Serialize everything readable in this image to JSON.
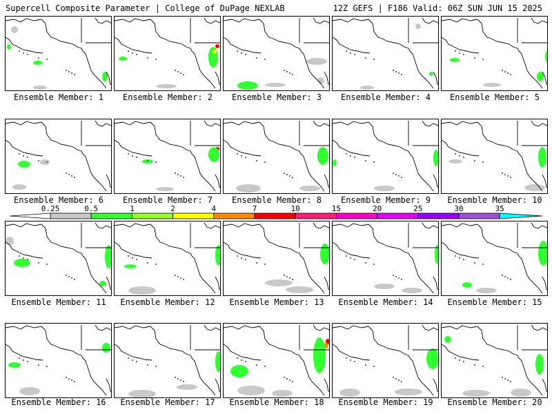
{
  "header": {
    "title_left": "Supercell Composite Parameter | College of DuPage NEXLAB",
    "title_right": "12Z GEFS | F186 Valid: 06Z SUN JUN 15 2025"
  },
  "panels": [
    {
      "label": "Ensemble Member: 1"
    },
    {
      "label": "Ensemble Member: 2"
    },
    {
      "label": "Ensemble Member: 3"
    },
    {
      "label": "Ensemble Member: 4"
    },
    {
      "label": "Ensemble Member: 5"
    },
    {
      "label": "Ensemble Member: 6"
    },
    {
      "label": "Ensemble Member: 7"
    },
    {
      "label": "Ensemble Member: 8"
    },
    {
      "label": "Ensemble Member: 9"
    },
    {
      "label": "Ensemble Member: 10"
    },
    {
      "label": "Ensemble Member: 11"
    },
    {
      "label": "Ensemble Member: 12"
    },
    {
      "label": "Ensemble Member: 13"
    },
    {
      "label": "Ensemble Member: 14"
    },
    {
      "label": "Ensemble Member: 15"
    },
    {
      "label": "Ensemble Member: 16"
    },
    {
      "label": "Ensemble Member: 17"
    },
    {
      "label": "Ensemble Member: 18"
    },
    {
      "label": "Ensemble Member: 19"
    },
    {
      "label": "Ensemble Member: 20"
    }
  ],
  "colorbar": {
    "ticks": [
      "0.25",
      "0.5",
      "1",
      "2",
      "4",
      "7",
      "10",
      "15",
      "20",
      "25",
      "30",
      "35"
    ],
    "colors": [
      "#ffffff",
      "#c8c8c8",
      "#32ff32",
      "#96ff28",
      "#ffff00",
      "#ff8c00",
      "#ff0000",
      "#ff1e78",
      "#ff00c8",
      "#e600ff",
      "#9600ff",
      "#a050dc",
      "#00ffff"
    ]
  },
  "shading_colors": {
    "light": "#c8c8c8",
    "green": "#32ff32",
    "yellow": "#ffff00",
    "orange": "#ff8c00",
    "red": "#ff0000"
  }
}
